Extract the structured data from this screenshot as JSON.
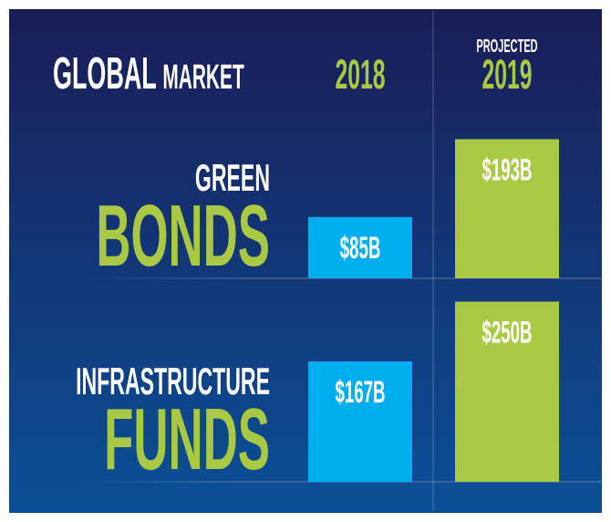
{
  "chart_data": {
    "type": "bar",
    "title": [
      "GLOBAL",
      "MARKET"
    ],
    "categories": [
      [
        "GREEN",
        "BONDS"
      ],
      [
        "INFRASTRUCTURE",
        "FUNDS"
      ]
    ],
    "series": [
      {
        "name": "2018",
        "color": "#00aeef",
        "values": [
          85,
          167
        ],
        "value_labels": [
          "$85B",
          "$167B"
        ]
      },
      {
        "name": "2019",
        "annotation": "PROJECTED",
        "color": "#a9c843",
        "values": [
          193,
          250
        ],
        "value_labels": [
          "$193B",
          "$250B"
        ]
      }
    ]
  }
}
